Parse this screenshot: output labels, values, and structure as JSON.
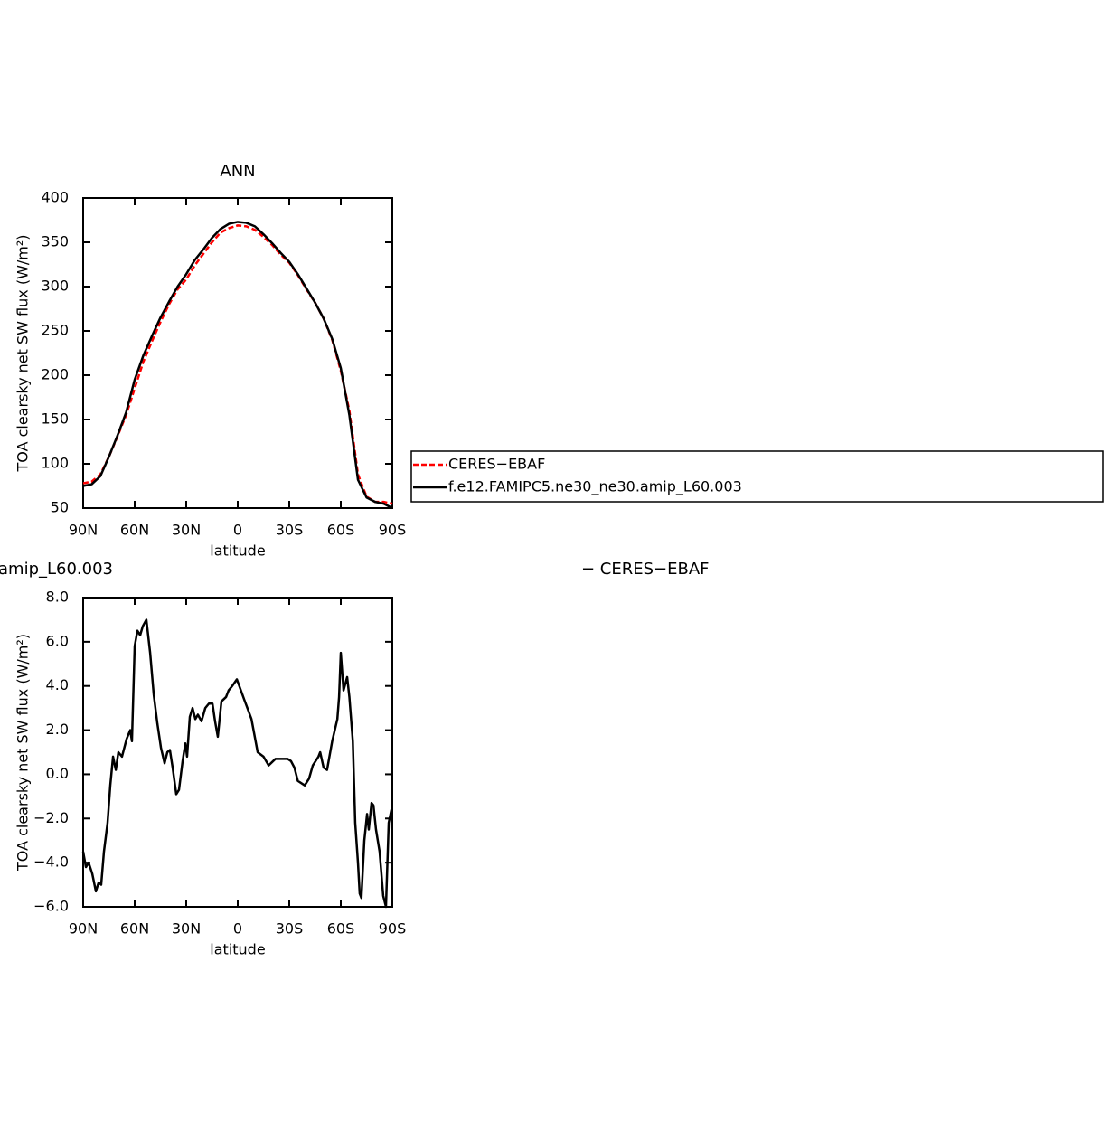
{
  "chart_data": [
    {
      "type": "line",
      "title": "ANN",
      "xlabel": "latitude",
      "ylabel": "TOA clearsky net SW flux (W/m²)",
      "x": [
        90,
        85,
        80,
        75,
        70,
        65,
        60,
        55,
        50,
        45,
        40,
        35,
        30,
        25,
        20,
        15,
        10,
        5,
        0,
        -5,
        -10,
        -15,
        -20,
        -25,
        -30,
        -35,
        -40,
        -45,
        -50,
        -55,
        -60,
        -65,
        -70,
        -75,
        -80,
        -85,
        -90
      ],
      "xlim": [
        90,
        -90
      ],
      "xticks": [
        {
          "value": 90,
          "label": "90N"
        },
        {
          "value": 60,
          "label": "60N"
        },
        {
          "value": 30,
          "label": "30N"
        },
        0,
        {
          "value": -30,
          "label": "30S"
        },
        {
          "value": -60,
          "label": "60S"
        },
        {
          "value": -90,
          "label": "90S"
        }
      ],
      "ylim": [
        50,
        400
      ],
      "yticks": [
        50,
        100,
        150,
        200,
        250,
        300,
        350,
        400
      ],
      "legend": "right",
      "series": [
        {
          "name": "CERES−EBAF",
          "color": "#ff0000",
          "dash": true,
          "values": [
            78,
            80,
            88,
            108,
            131,
            155,
            185,
            215,
            238,
            260,
            280,
            297,
            308,
            324,
            337,
            350,
            361,
            366,
            369,
            368,
            364,
            356,
            347,
            336,
            327,
            313,
            297,
            282,
            264,
            240,
            205,
            160,
            88,
            63,
            57,
            57,
            55
          ]
        },
        {
          "name": "f.e12.FAMIPC5.ne30_ne30.amip_L60.003",
          "color": "#000000",
          "dash": false,
          "values": [
            75,
            77,
            86,
            108,
            132,
            158,
            195,
            222,
            244,
            265,
            283,
            300,
            314,
            330,
            342,
            355,
            365,
            371,
            373,
            372,
            368,
            359,
            349,
            338,
            328,
            314,
            298,
            282,
            264,
            241,
            208,
            155,
            82,
            62,
            57,
            55,
            50
          ]
        }
      ]
    },
    {
      "type": "line",
      "left_title": "amip_L60.003",
      "title": "− CERES−EBAF",
      "xlabel": "latitude",
      "ylabel": "TOA clearsky net SW flux (W/m²)",
      "x": [
        90,
        88.4,
        86.8,
        84.7,
        82.6,
        81,
        79.5,
        77.9,
        75.8,
        74.2,
        72.6,
        71,
        69.5,
        67.4,
        64.7,
        62.6,
        61.6,
        60,
        58.4,
        56.8,
        55.3,
        53.2,
        51,
        48.9,
        46.8,
        44.7,
        42.6,
        41,
        39.5,
        37.9,
        35.8,
        34.2,
        32.1,
        30.5,
        29.5,
        27.9,
        26.3,
        24.7,
        23.2,
        21.1,
        18.9,
        16.8,
        14.7,
        13.2,
        11.6,
        9.5,
        6.8,
        5.3,
        3.2,
        0.5,
        -3.7,
        -8,
        -11.6,
        -15,
        -18,
        -22,
        -26,
        -29,
        -31,
        -33,
        -35,
        -39,
        -41.5,
        -43.7,
        -47,
        -48,
        -50,
        -52,
        -55,
        -58,
        -59,
        -60,
        -61.6,
        -63.7,
        -65,
        -67,
        -68.4,
        -70,
        -71,
        -72,
        -73.7,
        -75.3,
        -76.3,
        -77.9,
        -79,
        -80.5,
        -82.6,
        -84.7,
        -86.3,
        -87.9,
        -89.5
      ],
      "xlim": [
        90,
        -90
      ],
      "xticks": [
        {
          "value": 90,
          "label": "90N"
        },
        {
          "value": 60,
          "label": "60N"
        },
        {
          "value": 30,
          "label": "30N"
        },
        0,
        {
          "value": -30,
          "label": "30S"
        },
        {
          "value": -60,
          "label": "60S"
        },
        {
          "value": -90,
          "label": "90S"
        }
      ],
      "ylim": [
        -6,
        8
      ],
      "yticks": [
        {
          "value": -6,
          "label": "−6.0"
        },
        {
          "value": -4,
          "label": "−4.0"
        },
        {
          "value": -2,
          "label": "−2.0"
        },
        {
          "value": 0,
          "label": "0.0"
        },
        {
          "value": 2,
          "label": "2.0"
        },
        {
          "value": 4,
          "label": "4.0"
        },
        {
          "value": 6,
          "label": "6.0"
        },
        {
          "value": 8,
          "label": "8.0"
        }
      ],
      "series": [
        {
          "color": "#000000",
          "dash": false,
          "values": [
            -3.5,
            -4.2,
            -4,
            -4.5,
            -5.3,
            -4.9,
            -5,
            -3.5,
            -2.2,
            -0.5,
            0.8,
            0.2,
            1,
            0.8,
            1.6,
            2,
            1.5,
            5.8,
            6.5,
            6.3,
            6.7,
            7,
            5.5,
            3.6,
            2.3,
            1.2,
            0.5,
            1,
            1.1,
            0.3,
            -0.9,
            -0.7,
            0.6,
            1.4,
            0.8,
            2.6,
            3,
            2.5,
            2.7,
            2.4,
            3,
            3.2,
            3.2,
            2.4,
            1.7,
            3.3,
            3.5,
            3.8,
            4,
            4.3,
            3.4,
            2.5,
            1,
            0.8,
            0.4,
            0.7,
            0.7,
            0.7,
            0.6,
            0.3,
            -0.3,
            -0.5,
            -0.2,
            0.4,
            0.8,
            1,
            0.3,
            0.2,
            1.5,
            2.5,
            3.5,
            5.5,
            3.8,
            4.4,
            3.5,
            1.5,
            -2.2,
            -4,
            -5.4,
            -5.6,
            -3,
            -1.8,
            -2.5,
            -1.3,
            -1.4,
            -2.5,
            -3.5,
            -5.5,
            -6,
            -2.2,
            -1.6
          ]
        }
      ]
    }
  ]
}
